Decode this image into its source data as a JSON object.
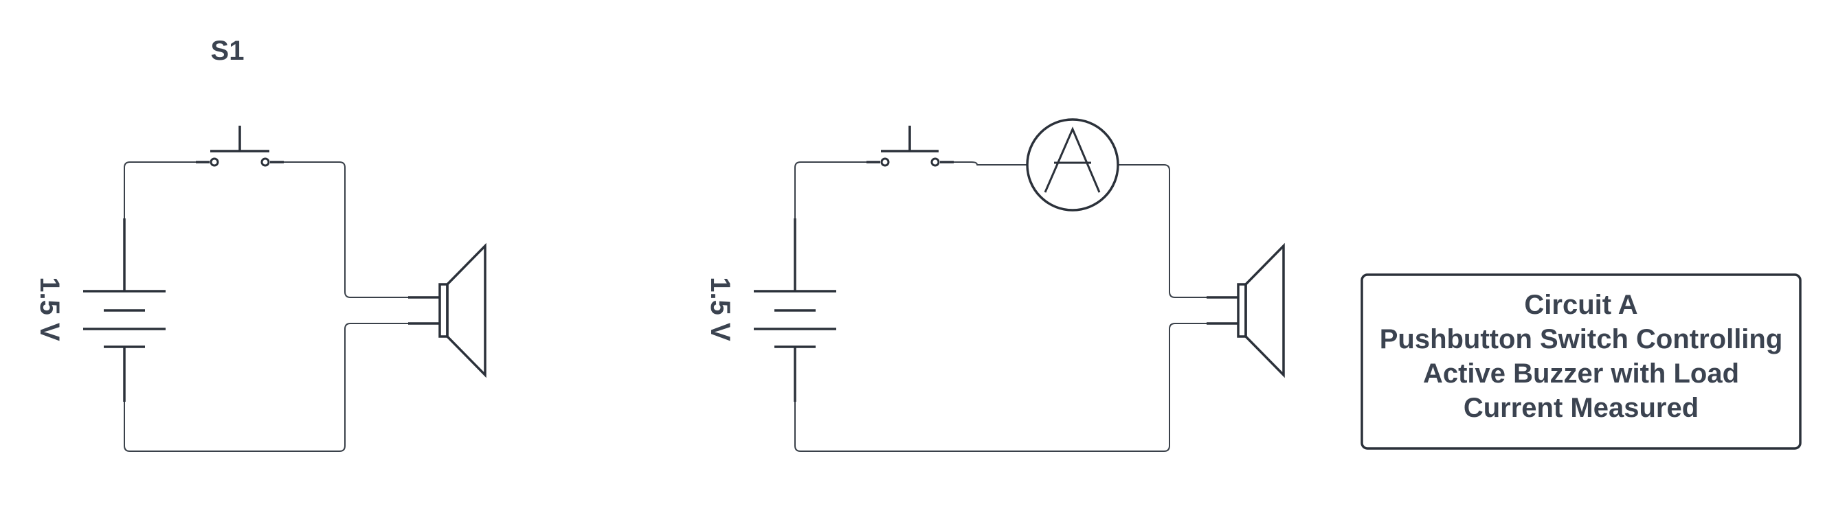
{
  "circuit_left": {
    "switch_label": "S1",
    "battery_label": "1.5 V"
  },
  "circuit_right": {
    "battery_label": "1.5 V",
    "ammeter_letter": "A"
  },
  "caption": {
    "lines": [
      "Circuit A",
      "Pushbutton Switch Controlling",
      "Active Buzzer with Load",
      "Current Measured"
    ]
  }
}
